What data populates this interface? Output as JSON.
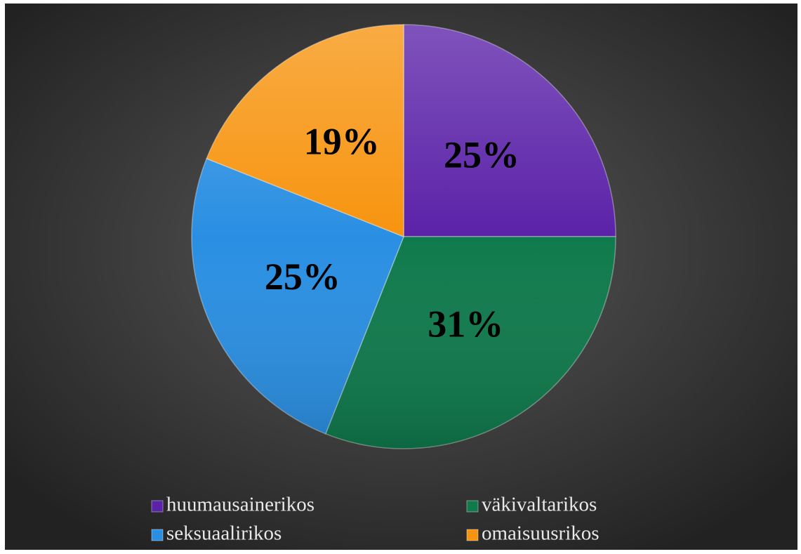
{
  "chart_data": {
    "type": "pie",
    "categories": [
      "huumausainerikos",
      "väkivaltarikos",
      "seksuaalirikos",
      "omaisuusrikos"
    ],
    "values": [
      25,
      31,
      25,
      19
    ],
    "value_labels": [
      "25%",
      "31%",
      "25%",
      "19%"
    ],
    "colors": [
      "#5b22a8",
      "#0f7a4c",
      "#2a8fe2",
      "#f7940f"
    ],
    "legend": "bottom"
  }
}
